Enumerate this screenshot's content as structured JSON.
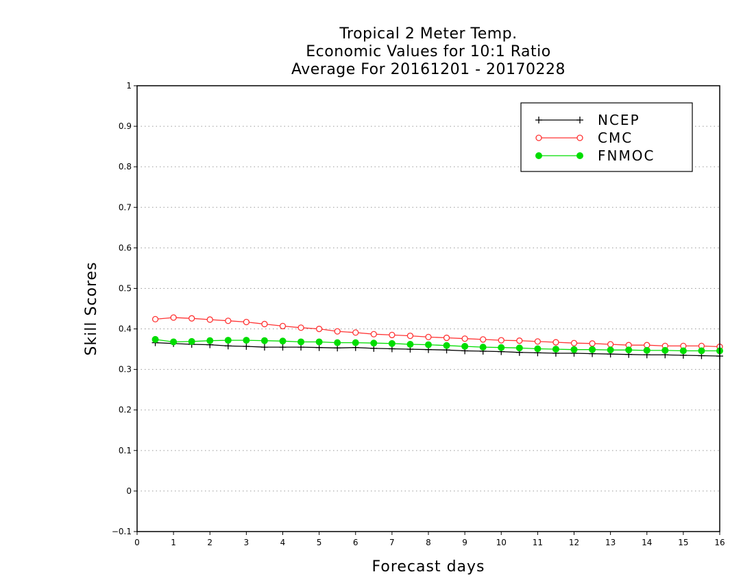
{
  "chart_data": {
    "type": "line",
    "title_lines": [
      "Tropical 2 Meter Temp.",
      "Economic Values for 10:1 Ratio",
      "Average For 20161201 - 20170228"
    ],
    "xlabel": "Forecast days",
    "ylabel": "Skill Scores",
    "xlim": [
      0,
      16
    ],
    "ylim": [
      -0.1,
      1
    ],
    "x_ticks": [
      "0",
      "1",
      "2",
      "3",
      "4",
      "5",
      "6",
      "7",
      "8",
      "9",
      "10",
      "11",
      "12",
      "13",
      "14",
      "15",
      "16"
    ],
    "y_ticks": [
      "−0.1",
      "0",
      "0.1",
      "0.2",
      "0.3",
      "0.4",
      "0.5",
      "0.6",
      "0.7",
      "0.8",
      "0.9",
      "1"
    ],
    "grid": "horizontal dotted",
    "legend_position": "top-right",
    "x": [
      0.5,
      1,
      1.5,
      2,
      2.5,
      3,
      3.5,
      4,
      4.5,
      5,
      5.5,
      6,
      6.5,
      7,
      7.5,
      8,
      8.5,
      9,
      9.5,
      10,
      10.5,
      11,
      11.5,
      12,
      12.5,
      13,
      13.5,
      14,
      14.5,
      15,
      15.5,
      16
    ],
    "series": [
      {
        "name": "NCEP",
        "color": "#000000",
        "marker": "plus",
        "values": [
          0.366,
          0.364,
          0.362,
          0.361,
          0.358,
          0.357,
          0.355,
          0.355,
          0.355,
          0.354,
          0.353,
          0.354,
          0.352,
          0.351,
          0.35,
          0.349,
          0.348,
          0.346,
          0.345,
          0.344,
          0.342,
          0.341,
          0.34,
          0.34,
          0.339,
          0.338,
          0.337,
          0.336,
          0.336,
          0.335,
          0.334,
          0.333
        ]
      },
      {
        "name": "CMC",
        "color": "#ff3333",
        "marker": "open-circle",
        "values": [
          0.424,
          0.428,
          0.426,
          0.423,
          0.42,
          0.417,
          0.412,
          0.407,
          0.403,
          0.4,
          0.394,
          0.391,
          0.387,
          0.385,
          0.383,
          0.38,
          0.378,
          0.376,
          0.374,
          0.372,
          0.371,
          0.369,
          0.367,
          0.365,
          0.364,
          0.362,
          0.36,
          0.36,
          0.358,
          0.358,
          0.358,
          0.356
        ]
      },
      {
        "name": "FNMOC",
        "color": "#00dd00",
        "marker": "filled-circle",
        "values": [
          0.374,
          0.368,
          0.369,
          0.371,
          0.372,
          0.372,
          0.371,
          0.37,
          0.368,
          0.368,
          0.366,
          0.366,
          0.365,
          0.364,
          0.362,
          0.361,
          0.359,
          0.357,
          0.355,
          0.354,
          0.353,
          0.351,
          0.35,
          0.349,
          0.349,
          0.348,
          0.348,
          0.347,
          0.347,
          0.346,
          0.346,
          0.346
        ]
      }
    ]
  }
}
